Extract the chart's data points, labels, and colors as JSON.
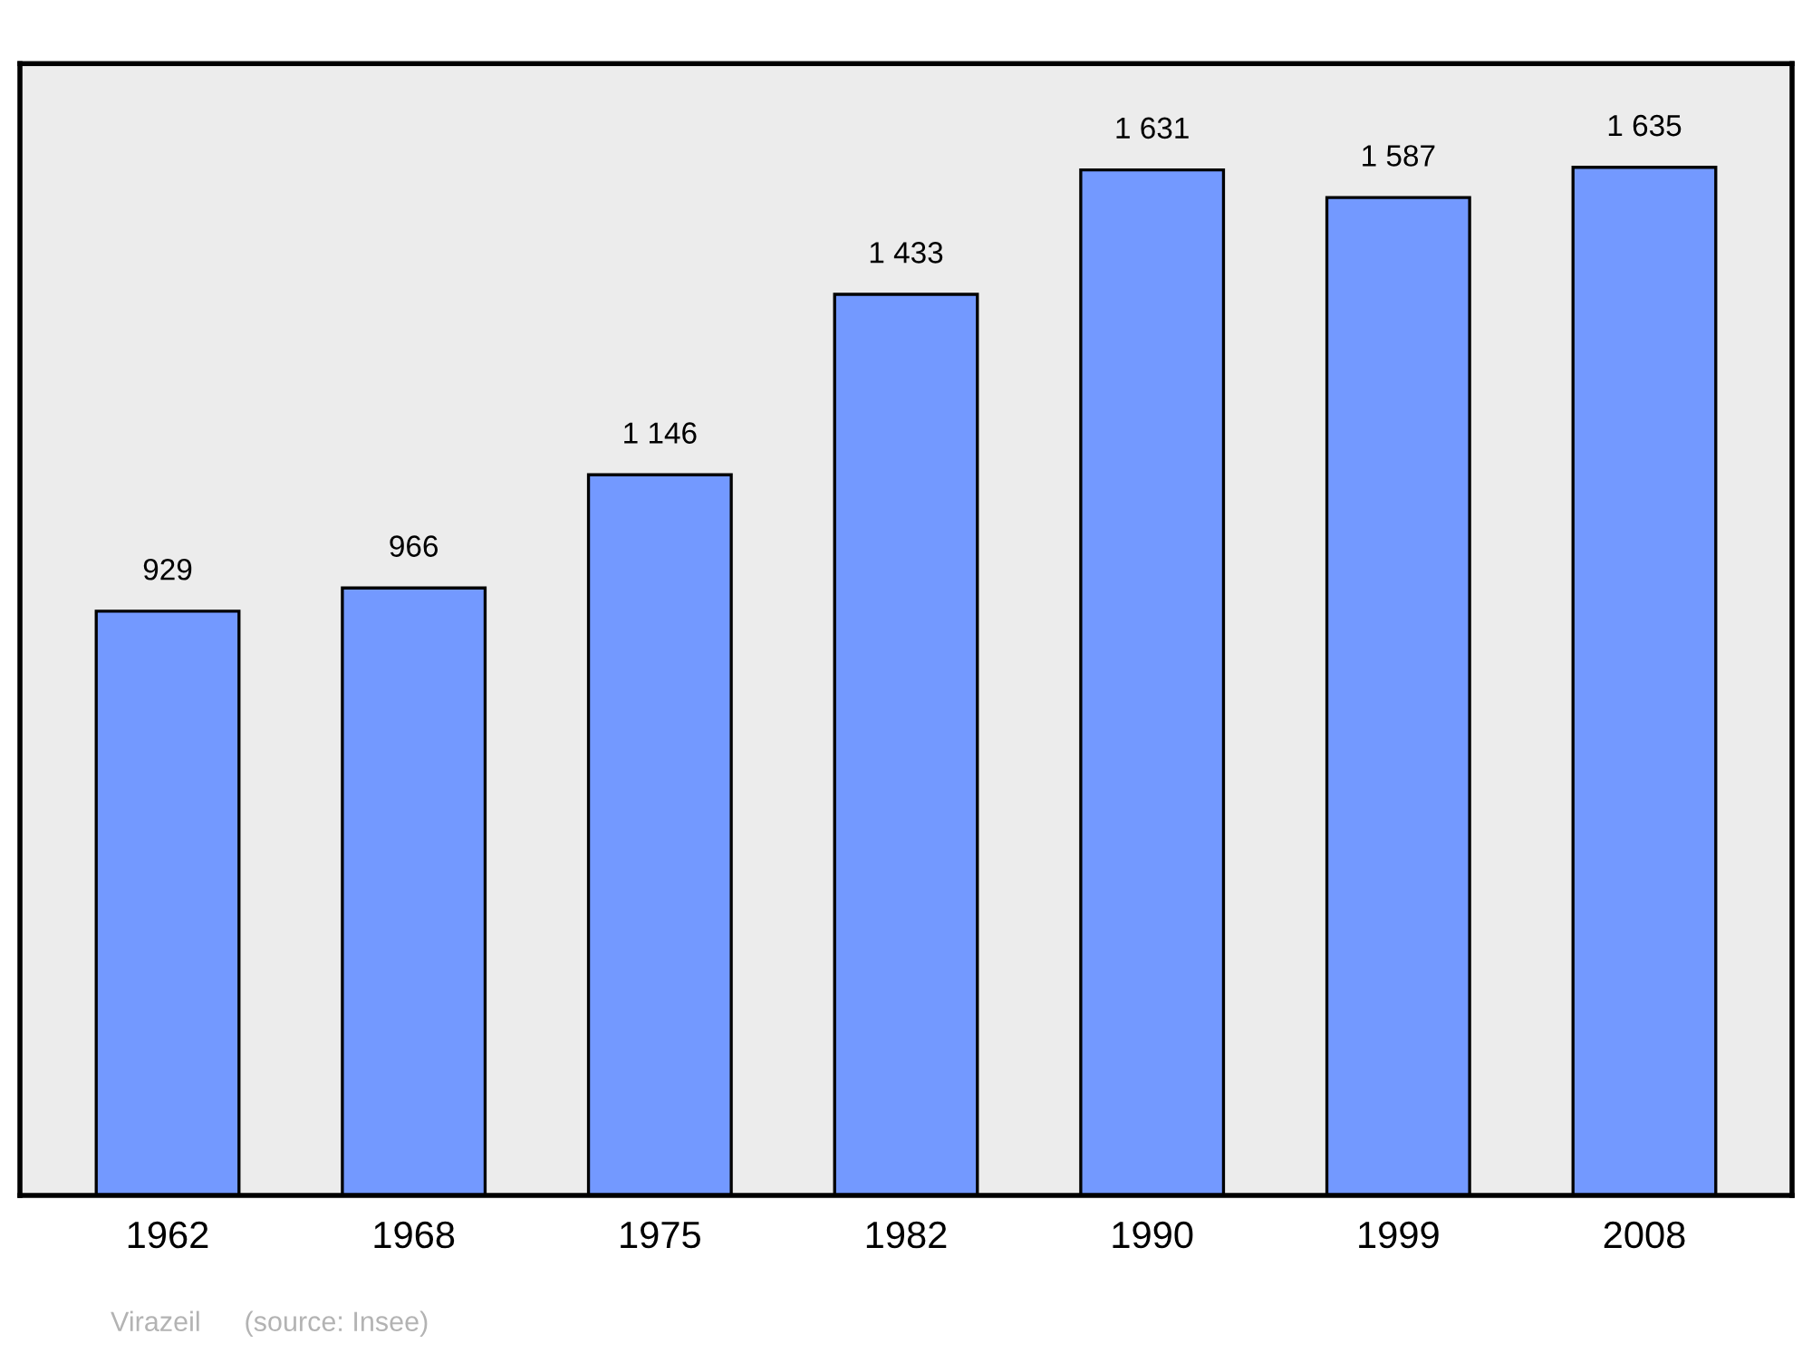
{
  "chart_data": {
    "type": "bar",
    "categories": [
      "1962",
      "1968",
      "1975",
      "1982",
      "1990",
      "1999",
      "2008"
    ],
    "values": [
      929,
      966,
      1146,
      1433,
      1631,
      1587,
      1635
    ],
    "value_labels": [
      "929",
      "966",
      "1 146",
      "1 433",
      "1 631",
      "1 587",
      "1 635"
    ],
    "color": "#7399ff",
    "ylim": [
      0,
      1800
    ],
    "tick_labels": "x",
    "grid": false,
    "legend": false,
    "annotations": [
      "Virazeil",
      "(source: Insee)"
    ]
  }
}
